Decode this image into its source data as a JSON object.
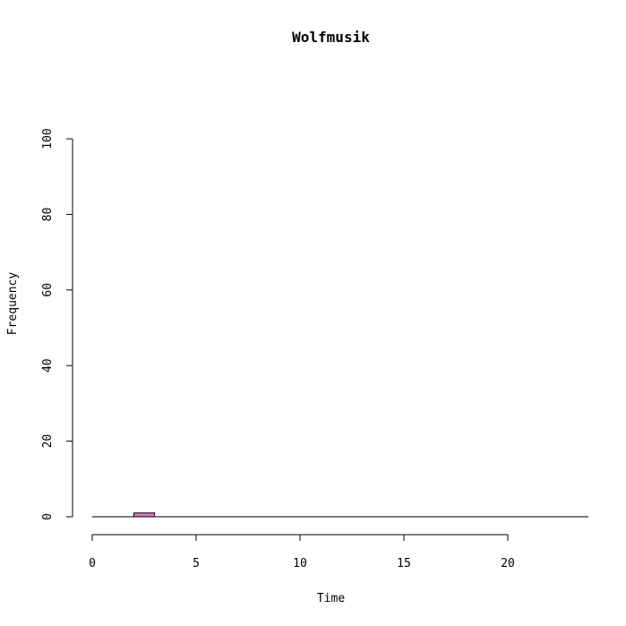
{
  "chart_data": {
    "type": "bar",
    "title": "Wolfmusik",
    "xlabel": "Time",
    "ylabel": "Frequency",
    "xlim": [
      0,
      24
    ],
    "ylim": [
      0,
      100
    ],
    "x_ticks": [
      0,
      5,
      10,
      15,
      20
    ],
    "y_ticks": [
      0,
      20,
      40,
      60,
      80,
      100
    ],
    "bins": [
      {
        "start": 2,
        "end": 3,
        "value": 1
      }
    ],
    "bar_color": "#e07bbf",
    "grid": false
  }
}
